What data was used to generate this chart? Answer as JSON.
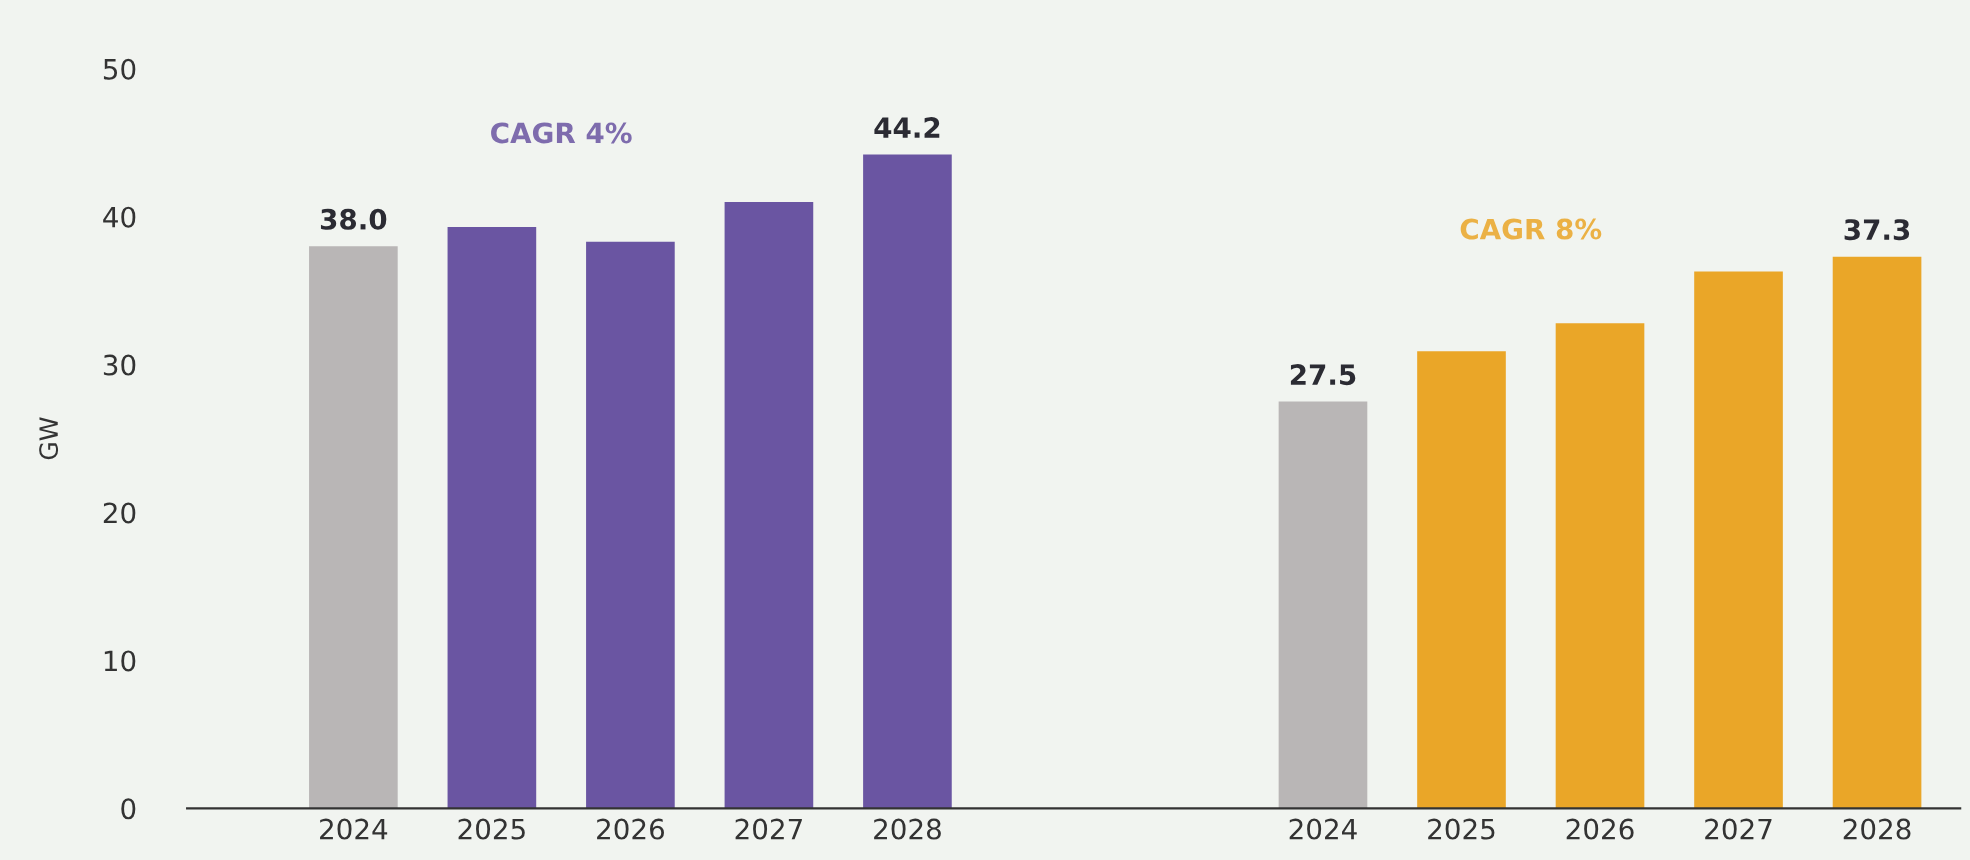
{
  "chart_data": {
    "type": "bar",
    "ylabel": "GW",
    "categories": [
      "2024",
      "2025",
      "2026",
      "2027",
      "2028",
      null,
      null,
      "2024",
      "2025",
      "2026",
      "2027",
      "2028"
    ],
    "values": [
      38.0,
      39.3,
      38.3,
      41.0,
      44.2,
      null,
      null,
      27.5,
      30.9,
      32.8,
      36.3,
      37.3
    ],
    "colors": [
      "#b9b6b6",
      "#6a55a2",
      "#6a55a2",
      "#6a55a2",
      "#6a55a2",
      null,
      null,
      "#b9b6b6",
      "#eaa628",
      "#eaa628",
      "#eaa628",
      "#eaa628"
    ],
    "value_labels": [
      "38.0",
      null,
      null,
      null,
      "44.2",
      null,
      null,
      "27.5",
      null,
      null,
      null,
      "37.3"
    ],
    "annotations": [
      "CAGR 4%",
      "CAGR 8%"
    ],
    "ylim": [
      0,
      50
    ],
    "yticks": [
      0,
      10,
      20,
      30,
      40,
      50
    ],
    "grid": false
  }
}
